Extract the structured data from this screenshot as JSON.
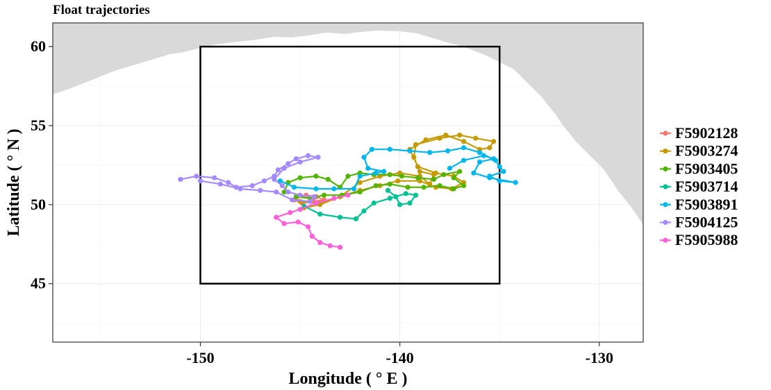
{
  "chart_data": {
    "type": "map-trajectory",
    "title": "Float trajectories",
    "xlabel": "Longitude ( ° E )",
    "ylabel": "Latitude ( ° N )",
    "xlim": [
      -157.4,
      -127.8
    ],
    "ylim": [
      41.3,
      61.5
    ],
    "x_ticks": [
      -150,
      -140,
      -130
    ],
    "y_ticks": [
      45,
      50,
      55,
      60
    ],
    "grid": true,
    "land_color": "#d9d9d9",
    "box": {
      "lon_min": -150,
      "lon_max": -135,
      "lat_min": 45,
      "lat_max": 60
    },
    "legend_position": "right",
    "series": [
      {
        "name": "F5902128",
        "color": "#F8766D",
        "points": [
          [
            -145.2,
            50.4
          ],
          [
            -144.7,
            50.6
          ],
          [
            -144.2,
            50.5
          ],
          [
            -143.8,
            50.3
          ],
          [
            -144.3,
            50.2
          ],
          [
            -144.9,
            50.1
          ],
          [
            -145.3,
            50.3
          ]
        ]
      },
      {
        "name": "F5903274",
        "color": "#C49A00",
        "points": [
          [
            -145.0,
            50.2
          ],
          [
            -144.0,
            50.1
          ],
          [
            -143.0,
            50.5
          ],
          [
            -142.0,
            51.4
          ],
          [
            -141.0,
            51.8
          ],
          [
            -140.0,
            52.0
          ],
          [
            -139.0,
            51.8
          ],
          [
            -138.5,
            51.3
          ],
          [
            -138.3,
            51.9
          ],
          [
            -139.0,
            52.1
          ],
          [
            -139.3,
            53.0
          ],
          [
            -139.2,
            53.8
          ],
          [
            -138.0,
            54.2
          ],
          [
            -137.0,
            54.4
          ],
          [
            -136.2,
            54.2
          ],
          [
            -135.3,
            54.0
          ],
          [
            -135.5,
            53.6
          ],
          [
            -136.0,
            53.5
          ],
          [
            -136.8,
            54.0
          ],
          [
            -137.7,
            54.4
          ],
          [
            -138.7,
            54.1
          ],
          [
            -139.5,
            53.5
          ],
          [
            -139.1,
            52.4
          ],
          [
            -138.2,
            52.0
          ],
          [
            -137.3,
            51.8
          ],
          [
            -136.8,
            51.4
          ],
          [
            -137.4,
            51.0
          ],
          [
            -138.2,
            51.1
          ],
          [
            -139.0,
            51.5
          ],
          [
            -140.1,
            51.5
          ],
          [
            -141.0,
            51.2
          ],
          [
            -142.0,
            50.9
          ],
          [
            -143.0,
            50.5
          ],
          [
            -144.0,
            50.0
          ],
          [
            -144.8,
            49.8
          ]
        ]
      },
      {
        "name": "F5903405",
        "color": "#53B400",
        "points": [
          [
            -145.8,
            50.8
          ],
          [
            -145.6,
            51.4
          ],
          [
            -145.0,
            51.7
          ],
          [
            -144.2,
            51.8
          ],
          [
            -143.6,
            51.6
          ],
          [
            -143.0,
            51.1
          ],
          [
            -142.6,
            51.8
          ],
          [
            -142.0,
            52.0
          ],
          [
            -141.3,
            51.9
          ],
          [
            -140.5,
            51.9
          ],
          [
            -139.9,
            51.8
          ],
          [
            -139.1,
            51.7
          ],
          [
            -138.3,
            51.6
          ],
          [
            -137.8,
            51.9
          ],
          [
            -137.0,
            52.1
          ],
          [
            -137.3,
            51.7
          ],
          [
            -136.8,
            51.2
          ],
          [
            -137.3,
            51.0
          ],
          [
            -138.0,
            51.2
          ],
          [
            -138.8,
            51.1
          ],
          [
            -139.6,
            51.1
          ],
          [
            -140.5,
            51.3
          ],
          [
            -141.2,
            51.2
          ],
          [
            -142.0,
            50.8
          ],
          [
            -142.9,
            50.6
          ],
          [
            -143.8,
            50.6
          ],
          [
            -144.5,
            50.4
          ],
          [
            -145.2,
            50.5
          ]
        ]
      },
      {
        "name": "F5903714",
        "color": "#00C094",
        "points": [
          [
            -144.8,
            49.9
          ],
          [
            -144.0,
            49.4
          ],
          [
            -143.0,
            49.2
          ],
          [
            -142.2,
            49.1
          ],
          [
            -141.8,
            49.6
          ],
          [
            -141.3,
            50.1
          ],
          [
            -140.5,
            50.4
          ],
          [
            -139.7,
            50.7
          ],
          [
            -139.2,
            50.6
          ],
          [
            -139.5,
            50.1
          ],
          [
            -140.0,
            50.0
          ],
          [
            -140.2,
            50.5
          ],
          [
            -140.6,
            50.9
          ]
        ]
      },
      {
        "name": "F5903891",
        "color": "#00B6EB",
        "points": [
          [
            -146.0,
            51.5
          ],
          [
            -145.3,
            51.1
          ],
          [
            -144.2,
            51.0
          ],
          [
            -143.3,
            51.0
          ],
          [
            -142.3,
            51.0
          ],
          [
            -142.0,
            51.8
          ],
          [
            -141.2,
            52.0
          ],
          [
            -140.8,
            52.1
          ],
          [
            -141.6,
            52.3
          ],
          [
            -141.8,
            53.0
          ],
          [
            -141.4,
            53.5
          ],
          [
            -140.5,
            53.5
          ],
          [
            -139.5,
            53.4
          ],
          [
            -138.5,
            53.3
          ],
          [
            -137.6,
            53.4
          ],
          [
            -136.8,
            53.6
          ],
          [
            -136.0,
            53.3
          ],
          [
            -135.2,
            52.8
          ],
          [
            -135.0,
            52.4
          ],
          [
            -134.8,
            52.1
          ],
          [
            -135.5,
            51.8
          ],
          [
            -135.0,
            51.5
          ],
          [
            -134.2,
            51.4
          ],
          [
            -135.5,
            51.7
          ],
          [
            -136.3,
            52.0
          ],
          [
            -136.0,
            52.7
          ],
          [
            -135.3,
            52.9
          ],
          [
            -135.8,
            53.1
          ],
          [
            -136.8,
            52.8
          ],
          [
            -137.5,
            52.3
          ]
        ]
      },
      {
        "name": "F5904125",
        "color": "#A58AFF",
        "points": [
          [
            -151.0,
            51.6
          ],
          [
            -150.2,
            51.8
          ],
          [
            -149.3,
            51.7
          ],
          [
            -148.6,
            51.4
          ],
          [
            -148.2,
            51.1
          ],
          [
            -147.4,
            51.2
          ],
          [
            -146.8,
            51.5
          ],
          [
            -146.3,
            51.8
          ],
          [
            -146.1,
            52.2
          ],
          [
            -145.6,
            52.6
          ],
          [
            -145.2,
            52.9
          ],
          [
            -144.6,
            53.1
          ],
          [
            -144.1,
            53.0
          ],
          [
            -145.0,
            52.7
          ],
          [
            -145.8,
            52.3
          ],
          [
            -146.3,
            51.6
          ],
          [
            -145.9,
            51.2
          ],
          [
            -145.6,
            50.8
          ],
          [
            -145.0,
            50.6
          ],
          [
            -144.3,
            50.5
          ],
          [
            -144.5,
            50.2
          ],
          [
            -145.4,
            50.3
          ],
          [
            -146.2,
            50.8
          ],
          [
            -147.0,
            50.9
          ],
          [
            -148.0,
            51.0
          ],
          [
            -149.0,
            51.3
          ],
          [
            -150.0,
            51.5
          ]
        ]
      },
      {
        "name": "F5905988",
        "color": "#FB61D7",
        "points": [
          [
            -142.6,
            50.6
          ],
          [
            -143.3,
            50.4
          ],
          [
            -144.2,
            50.1
          ],
          [
            -145.0,
            49.7
          ],
          [
            -145.5,
            49.5
          ],
          [
            -146.2,
            49.2
          ],
          [
            -145.8,
            48.8
          ],
          [
            -145.1,
            48.9
          ],
          [
            -144.6,
            48.6
          ],
          [
            -144.4,
            48.0
          ],
          [
            -144.0,
            47.6
          ],
          [
            -143.5,
            47.4
          ],
          [
            -143.0,
            47.3
          ]
        ]
      }
    ]
  }
}
